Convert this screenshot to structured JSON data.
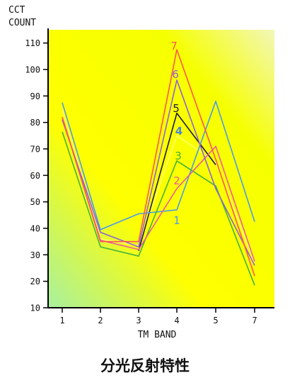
{
  "chart_data": {
    "type": "line",
    "ylabel": "CCT COUNT",
    "xlabel": "TM BAND",
    "categories": [
      "1",
      "2",
      "3",
      "4",
      "5",
      "7"
    ],
    "ylim": [
      10,
      115
    ],
    "yticks": [
      10,
      20,
      30,
      40,
      50,
      60,
      70,
      80,
      90,
      100,
      110
    ],
    "grid": false,
    "legend": "inline labels at band 4",
    "background": "yellow gradient with light green lower-left corner",
    "series": [
      {
        "name": "1",
        "color": "#4a9be8",
        "values": [
          87.5,
          39.5,
          45.5,
          47,
          88,
          42.5
        ]
      },
      {
        "name": "2",
        "color": "#ee5a9e",
        "values": [
          82,
          35.5,
          32,
          55,
          71,
          27.5
        ]
      },
      {
        "name": "3",
        "color": "#44b23c",
        "values": [
          76.5,
          33,
          29.5,
          65.5,
          56,
          18.5
        ]
      },
      {
        "name": "4",
        "color": "#ffff66",
        "values": [
          85,
          36,
          33.5,
          75,
          65,
          27
        ]
      },
      {
        "name": "5",
        "color": "#1e1a33",
        "values": [
          null,
          null,
          31.5,
          83.5,
          64,
          null
        ]
      },
      {
        "name": "6",
        "color": "#9060d8",
        "values": [
          81,
          38.5,
          33,
          96,
          55,
          26
        ]
      },
      {
        "name": "7",
        "color": "#ff5555",
        "values": [
          82,
          35,
          35,
          107.5,
          66,
          22
        ]
      }
    ]
  },
  "caption": "分光反射特性"
}
